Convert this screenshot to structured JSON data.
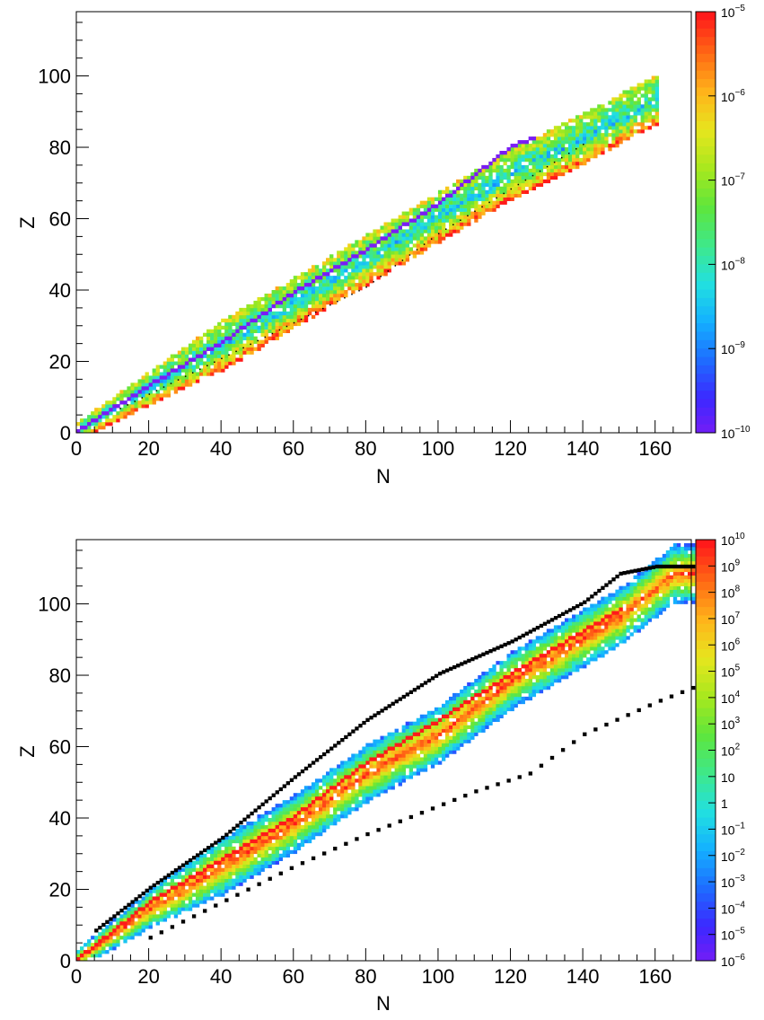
{
  "chart_data": [
    {
      "type": "heatmap",
      "title": "",
      "xlabel": "N",
      "ylabel": "Z",
      "xlim": [
        0,
        170
      ],
      "ylim": [
        0,
        118
      ],
      "x_ticks": [
        "0",
        "20",
        "40",
        "60",
        "80",
        "100",
        "120",
        "140",
        "160"
      ],
      "y_ticks": [
        "0",
        "20",
        "40",
        "60",
        "80",
        "100"
      ],
      "colorbar": {
        "scale": "log",
        "range": [
          1e-10,
          1e-05
        ],
        "ticks": [
          {
            "base": "10",
            "exp": "−5"
          },
          {
            "base": "10",
            "exp": "−6"
          },
          {
            "base": "10",
            "exp": "−7"
          },
          {
            "base": "10",
            "exp": "−8"
          },
          {
            "base": "10",
            "exp": "−9"
          },
          {
            "base": "10",
            "exp": "−10"
          }
        ]
      },
      "band": {
        "z_per_n": [
          [
            0,
            0
          ],
          [
            10,
            6
          ],
          [
            20,
            12
          ],
          [
            40,
            24
          ],
          [
            60,
            36
          ],
          [
            80,
            48
          ],
          [
            100,
            60
          ],
          [
            120,
            72
          ],
          [
            140,
            82
          ],
          [
            160,
            93
          ]
        ],
        "band_width_z": 14,
        "extent_n": [
          0,
          160
        ],
        "stability_line_z_per_n": [
          [
            0,
            0
          ],
          [
            20,
            13
          ],
          [
            40,
            25
          ],
          [
            60,
            39
          ],
          [
            80,
            51
          ],
          [
            100,
            64
          ],
          [
            120,
            80
          ],
          [
            126,
            82
          ]
        ],
        "dotted_boundary_z_per_n": [
          [
            12,
            6
          ],
          [
            40,
            20
          ],
          [
            80,
            40
          ],
          [
            100,
            55
          ],
          [
            140,
            80
          ]
        ]
      },
      "colors": {
        "low": "#7a1cf5",
        "high": "#ff1a1a",
        "boundary": "#000000"
      }
    },
    {
      "type": "heatmap",
      "title": "",
      "xlabel": "N",
      "ylabel": "Z",
      "xlim": [
        0,
        170
      ],
      "ylim": [
        0,
        118
      ],
      "x_ticks": [
        "0",
        "20",
        "40",
        "60",
        "80",
        "100",
        "120",
        "140",
        "160"
      ],
      "y_ticks": [
        "0",
        "20",
        "40",
        "60",
        "80",
        "100"
      ],
      "colorbar": {
        "scale": "log",
        "range": [
          1e-06,
          10000000000.0
        ],
        "ticks": [
          {
            "base": "10",
            "exp": "10"
          },
          {
            "base": "10",
            "exp": "9"
          },
          {
            "base": "10",
            "exp": "8"
          },
          {
            "base": "10",
            "exp": "7"
          },
          {
            "base": "10",
            "exp": "6"
          },
          {
            "base": "10",
            "exp": "5"
          },
          {
            "base": "10",
            "exp": "4"
          },
          {
            "base": "10",
            "exp": "3"
          },
          {
            "base": "10",
            "exp": "2"
          },
          {
            "base": "10",
            "exp": ""
          },
          {
            "base": "1",
            "exp": ""
          },
          {
            "base": "10",
            "exp": "−1"
          },
          {
            "base": "10",
            "exp": "−2"
          },
          {
            "base": "10",
            "exp": "−3"
          },
          {
            "base": "10",
            "exp": "−4"
          },
          {
            "base": "10",
            "exp": "−5"
          },
          {
            "base": "10",
            "exp": "−6"
          }
        ]
      },
      "band": {
        "z_per_n": [
          [
            0,
            0
          ],
          [
            10,
            7
          ],
          [
            20,
            14
          ],
          [
            40,
            26
          ],
          [
            60,
            38
          ],
          [
            80,
            52
          ],
          [
            100,
            63
          ],
          [
            120,
            78
          ],
          [
            130,
            84
          ],
          [
            150,
            96
          ],
          [
            165,
            108
          ]
        ],
        "band_width_z": 16,
        "extent_n": [
          0,
          170
        ],
        "ridge_z_per_n": [
          [
            0,
            0
          ],
          [
            20,
            16
          ],
          [
            40,
            28
          ],
          [
            60,
            40
          ],
          [
            80,
            55
          ],
          [
            100,
            67
          ],
          [
            120,
            80
          ],
          [
            150,
            98
          ]
        ],
        "upper_boundary_z_per_n": [
          [
            5,
            8
          ],
          [
            20,
            20
          ],
          [
            40,
            34
          ],
          [
            60,
            51
          ],
          [
            80,
            67
          ],
          [
            100,
            80
          ],
          [
            120,
            89
          ],
          [
            140,
            100
          ],
          [
            150,
            108
          ],
          [
            160,
            110
          ],
          [
            170,
            110
          ]
        ],
        "lower_scatter_z_per_n": [
          [
            20,
            6
          ],
          [
            40,
            16
          ],
          [
            60,
            26
          ],
          [
            80,
            35
          ],
          [
            100,
            43
          ],
          [
            110,
            47
          ],
          [
            125,
            52
          ],
          [
            140,
            63
          ],
          [
            160,
            72
          ],
          [
            170,
            76
          ]
        ]
      },
      "colors": {
        "low": "#7a1cf5",
        "high": "#ff1a1a",
        "boundary": "#000000"
      }
    }
  ]
}
